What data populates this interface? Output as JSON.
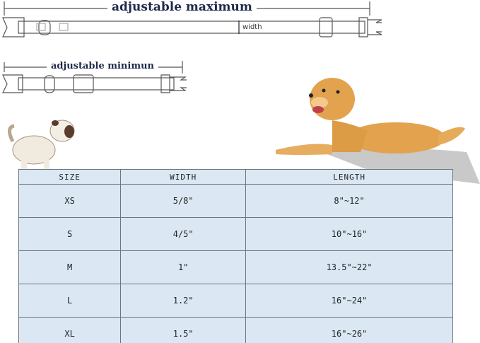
{
  "diagram": {
    "max_label": "adjustable maximum",
    "min_label": "adjustable minimun",
    "width_label": "width"
  },
  "size_table": {
    "headers": [
      "SIZE",
      "WIDTH",
      "LENGTH"
    ],
    "rows": [
      [
        "XS",
        "5/8\"",
        "8\"~12\""
      ],
      [
        "S",
        "4/5\"",
        "10\"~16\""
      ],
      [
        "M",
        "1\"",
        "13.5\"~22\""
      ],
      [
        "L",
        "1.2\"",
        "16\"~24\""
      ],
      [
        "XL",
        "1.5\"",
        "16\"~26\""
      ]
    ]
  },
  "colors": {
    "table_bg": "#dbe8f4",
    "title": "#1e2a4a",
    "dog": "#e2a24e"
  }
}
